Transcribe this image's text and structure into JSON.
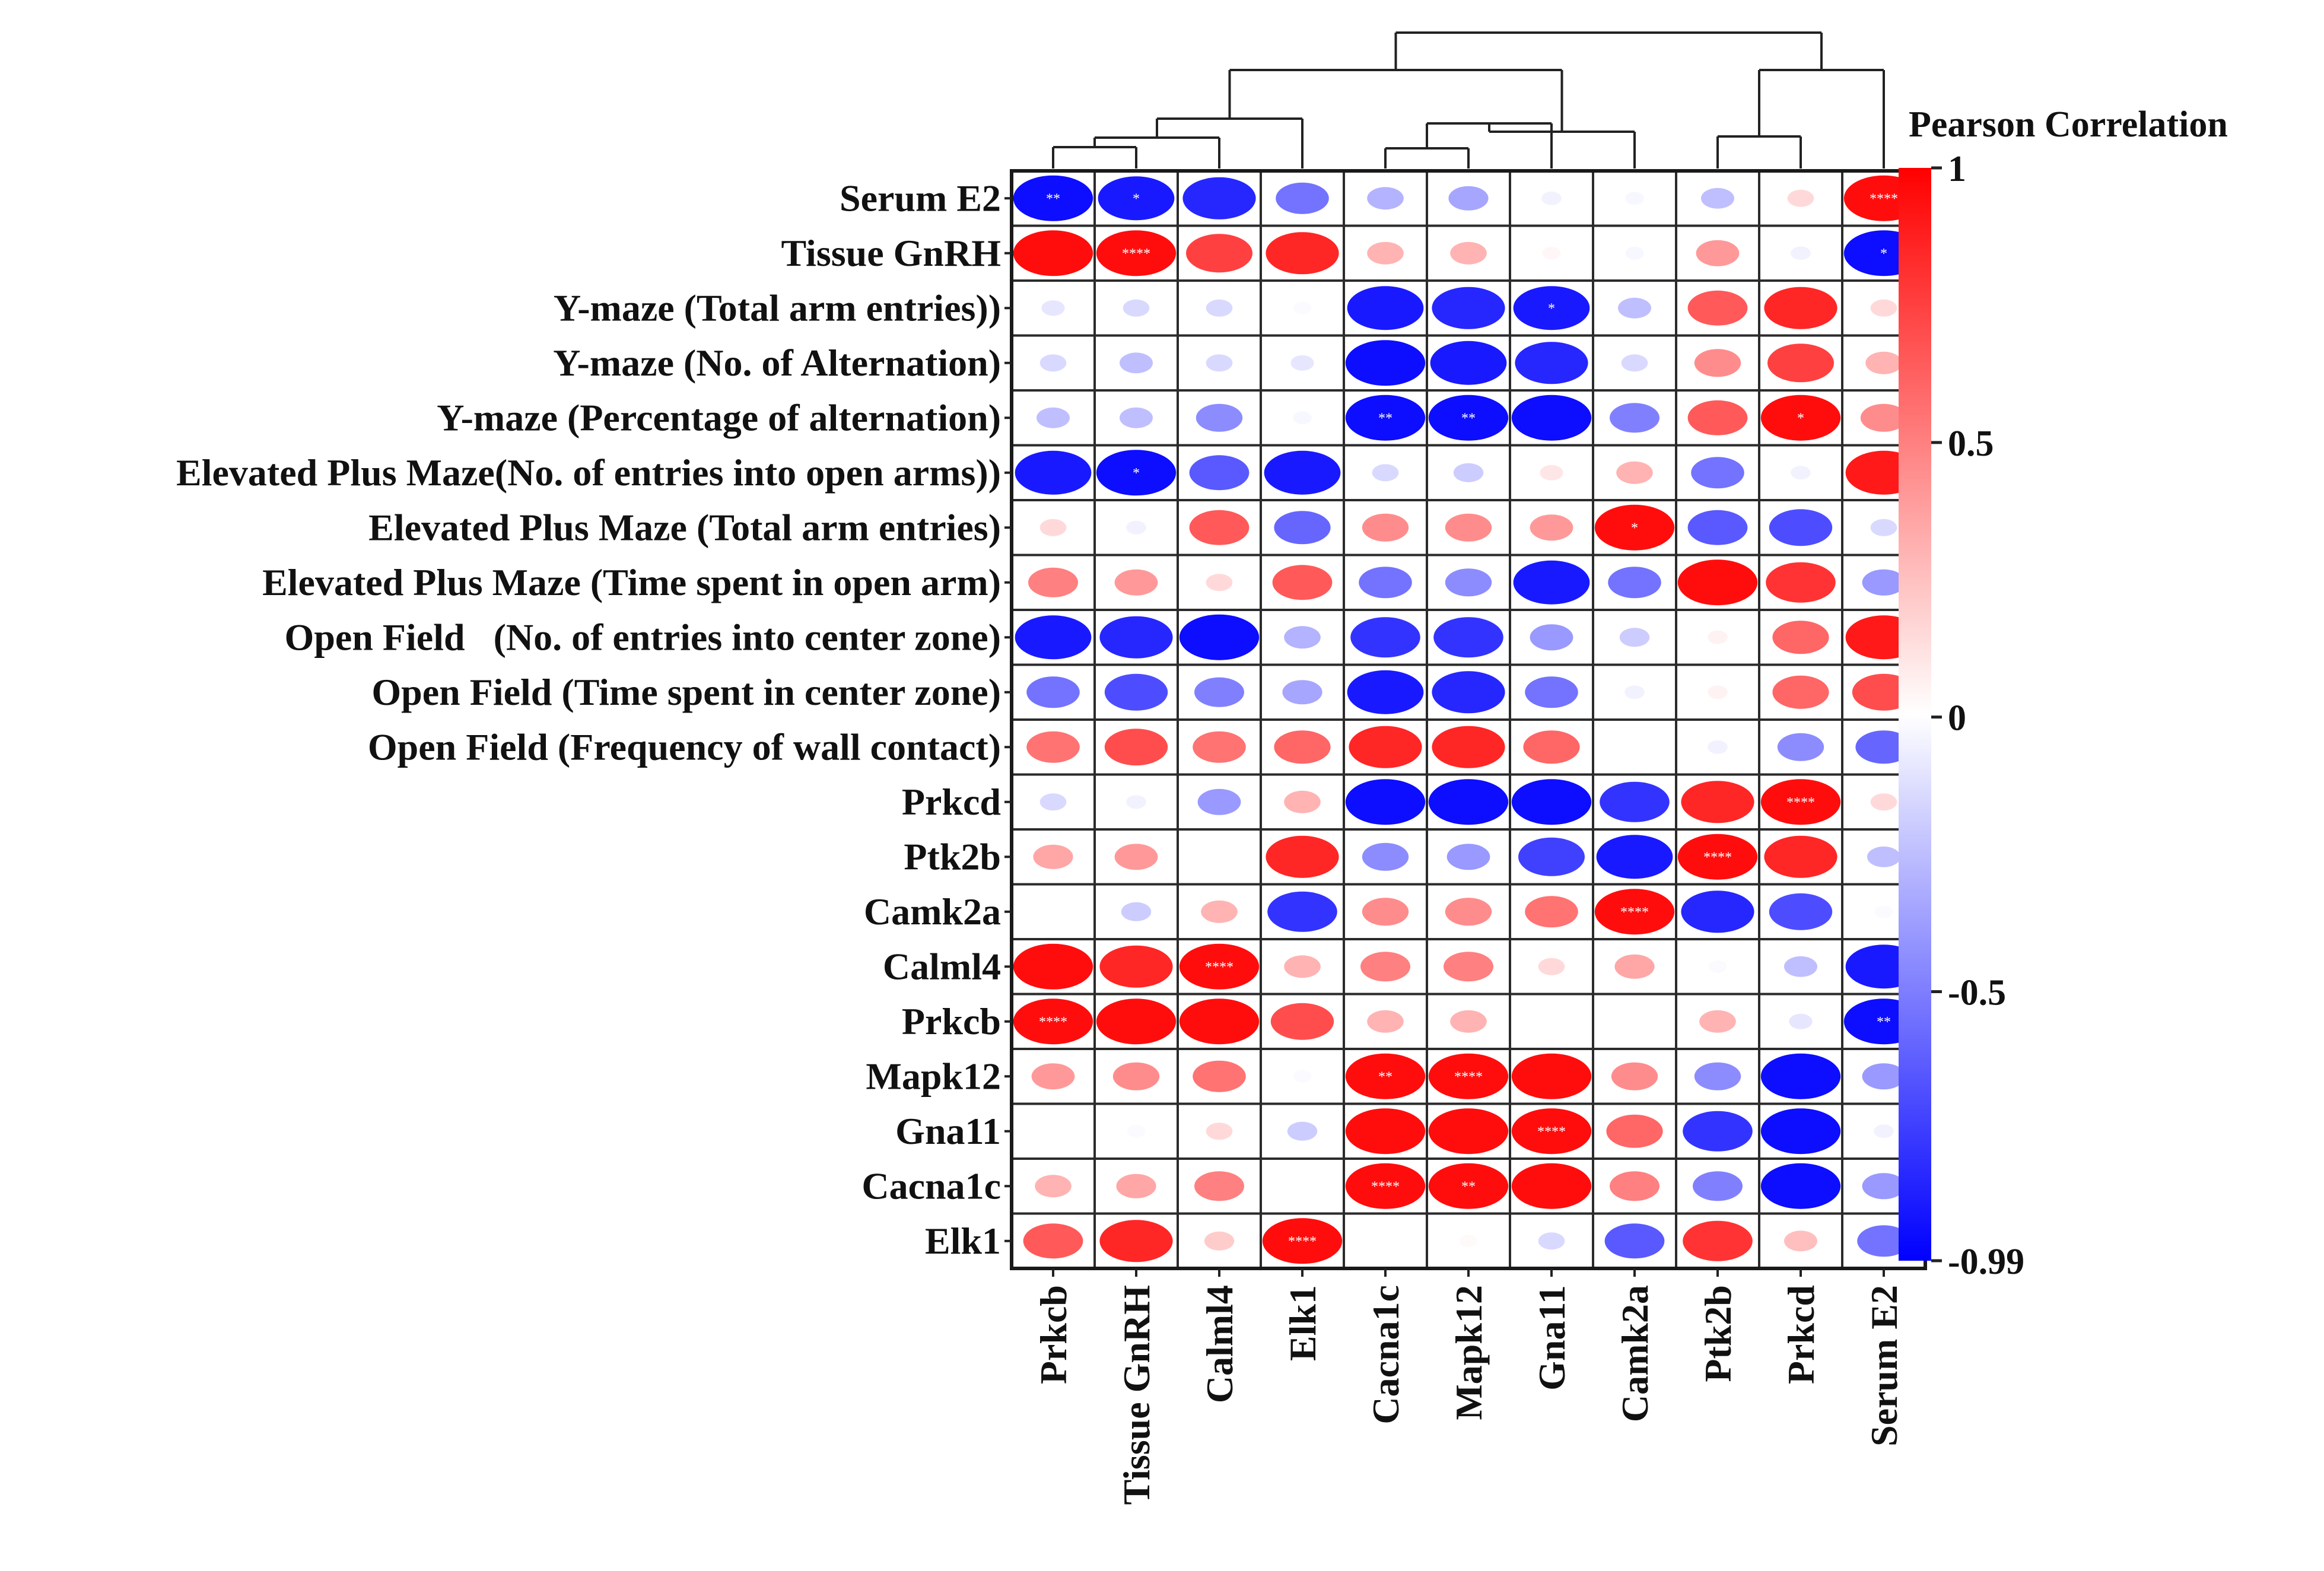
{
  "chart_data": {
    "type": "heatmap",
    "style": "circle-correlation-matrix",
    "title": "",
    "rows": [
      "Serum E2",
      "Tissue GnRH",
      "Y-maze (Total arm entries))",
      "Y-maze (No. of Alternation)",
      "Y-maze (Percentage of alternation)",
      "Elevated Plus Maze(No. of entries into open arms))",
      "Elevated Plus Maze (Total arm entries)",
      "Elevated Plus Maze (Time spent in open arm)",
      "Open Field   (No. of entries into center zone)",
      "Open Field (Time spent in center zone)",
      "Open Field (Frequency of wall contact)",
      "Prkcd",
      "Ptk2b",
      "Camk2a",
      "Calml4",
      "Prkcb",
      "Mapk12",
      "Gna11",
      "Cacna1c",
      "Elk1"
    ],
    "columns": [
      "Prkcb",
      "Tissue GnRH",
      "Calml4",
      "Elk1",
      "Cacna1c",
      "Mapk12",
      "Gna11",
      "Camk2a",
      "Ptk2b",
      "Prkcd",
      "Serum E2"
    ],
    "values": [
      [
        -0.95,
        -0.9,
        -0.85,
        -0.55,
        -0.3,
        -0.35,
        -0.05,
        -0.03,
        -0.25,
        0.15,
        0.95
      ],
      [
        0.95,
        0.95,
        0.75,
        0.85,
        0.3,
        0.3,
        0.03,
        -0.03,
        0.4,
        -0.05,
        -0.95
      ],
      [
        -0.1,
        -0.15,
        -0.15,
        -0.02,
        -0.9,
        -0.85,
        -0.9,
        -0.25,
        0.65,
        0.85,
        0.15
      ],
      [
        -0.15,
        -0.25,
        -0.15,
        -0.1,
        -0.95,
        -0.9,
        -0.85,
        -0.15,
        0.45,
        0.75,
        0.3
      ],
      [
        -0.25,
        -0.25,
        -0.45,
        -0.03,
        -0.95,
        -0.95,
        -0.95,
        -0.5,
        0.65,
        0.95,
        0.45
      ],
      [
        -0.9,
        -0.95,
        -0.65,
        -0.9,
        -0.15,
        -0.2,
        0.1,
        0.3,
        -0.55,
        -0.05,
        0.9
      ],
      [
        0.15,
        -0.05,
        0.65,
        -0.6,
        0.45,
        0.45,
        0.4,
        0.95,
        -0.65,
        -0.7,
        -0.15
      ],
      [
        0.5,
        0.4,
        0.15,
        0.65,
        -0.55,
        -0.45,
        -0.9,
        -0.55,
        0.95,
        0.8,
        -0.4
      ],
      [
        -0.9,
        -0.85,
        -0.95,
        -0.3,
        -0.8,
        -0.8,
        -0.4,
        -0.2,
        0.05,
        0.6,
        0.9
      ],
      [
        -0.55,
        -0.7,
        -0.5,
        -0.35,
        -0.9,
        -0.85,
        -0.55,
        -0.05,
        0.05,
        0.6,
        0.7
      ],
      [
        0.55,
        0.7,
        0.55,
        0.6,
        0.85,
        0.85,
        0.6,
        0.0,
        -0.05,
        -0.45,
        -0.6
      ],
      [
        -0.15,
        -0.05,
        -0.4,
        0.3,
        -0.95,
        -0.95,
        -0.95,
        -0.8,
        0.85,
        0.95,
        0.15
      ],
      [
        0.35,
        0.4,
        0.0,
        0.85,
        -0.45,
        -0.4,
        -0.75,
        -0.9,
        0.95,
        0.85,
        -0.25
      ],
      [
        0.0,
        -0.2,
        0.3,
        -0.8,
        0.45,
        0.45,
        0.55,
        0.95,
        -0.85,
        -0.7,
        -0.02
      ],
      [
        0.95,
        0.85,
        0.95,
        0.3,
        0.5,
        0.5,
        0.15,
        0.35,
        -0.02,
        -0.25,
        -0.9
      ],
      [
        0.95,
        0.95,
        0.95,
        0.7,
        0.3,
        0.3,
        0.0,
        0.0,
        0.3,
        -0.1,
        -0.95
      ],
      [
        0.4,
        0.45,
        0.55,
        -0.02,
        0.95,
        0.95,
        0.95,
        0.45,
        -0.45,
        -0.95,
        -0.4
      ],
      [
        0.0,
        -0.02,
        0.15,
        -0.2,
        0.95,
        0.95,
        0.95,
        0.6,
        -0.8,
        -0.95,
        -0.05
      ],
      [
        0.3,
        0.35,
        0.5,
        0.0,
        0.95,
        0.95,
        0.95,
        0.5,
        -0.5,
        -0.95,
        -0.4
      ],
      [
        0.65,
        0.85,
        0.2,
        0.95,
        0.0,
        0.02,
        -0.15,
        -0.65,
        0.8,
        0.25,
        -0.55
      ]
    ],
    "significance": [
      [
        "**",
        "*",
        "",
        "",
        "",
        "",
        "",
        "",
        "",
        "",
        "****"
      ],
      [
        "",
        "****",
        "",
        "",
        "",
        "",
        "",
        "",
        "",
        "",
        "*"
      ],
      [
        "",
        "",
        "",
        "",
        "",
        "",
        "*",
        "",
        "",
        "",
        ""
      ],
      [
        "",
        "",
        "",
        "",
        "",
        "",
        "",
        "",
        "",
        "",
        ""
      ],
      [
        "",
        "",
        "",
        "",
        "**",
        "**",
        "",
        "",
        "",
        "*",
        ""
      ],
      [
        "",
        "*",
        "",
        "",
        "",
        "",
        "",
        "",
        "",
        "",
        ""
      ],
      [
        "",
        "",
        "",
        "",
        "",
        "",
        "",
        "*",
        "",
        "",
        ""
      ],
      [
        "",
        "",
        "",
        "",
        "",
        "",
        "",
        "",
        "",
        "",
        ""
      ],
      [
        "",
        "",
        "",
        "",
        "",
        "",
        "",
        "",
        "",
        "",
        ""
      ],
      [
        "",
        "",
        "",
        "",
        "",
        "",
        "",
        "",
        "",
        "",
        ""
      ],
      [
        "",
        "",
        "",
        "",
        "",
        "",
        "",
        "",
        "",
        "",
        ""
      ],
      [
        "",
        "",
        "",
        "",
        "",
        "",
        "",
        "",
        "",
        "****",
        ""
      ],
      [
        "",
        "",
        "",
        "",
        "",
        "",
        "",
        "",
        "****",
        "",
        ""
      ],
      [
        "",
        "",
        "",
        "",
        "",
        "",
        "",
        "****",
        "",
        "",
        ""
      ],
      [
        "",
        "",
        "****",
        "",
        "",
        "",
        "",
        "",
        "",
        "",
        ""
      ],
      [
        "****",
        "",
        "",
        "",
        "",
        "",
        "",
        "",
        "",
        "",
        "**"
      ],
      [
        "",
        "",
        "",
        "",
        "**",
        "****",
        "",
        "",
        "",
        "",
        ""
      ],
      [
        "",
        "",
        "",
        "",
        "",
        "",
        "****",
        "",
        "",
        "",
        ""
      ],
      [
        "",
        "",
        "",
        "",
        "****",
        "**",
        "",
        "",
        "",
        "",
        ""
      ],
      [
        "",
        "",
        "",
        "****",
        "",
        "",
        "",
        "",
        "",
        "",
        ""
      ]
    ],
    "legend": {
      "title": "Pearson Correlation",
      "ticks": [
        {
          "label": "1",
          "value": 1
        },
        {
          "label": "0.5",
          "value": 0.5
        },
        {
          "label": "0",
          "value": 0
        },
        {
          "label": "-0.5",
          "value": -0.5
        },
        {
          "label": "-0.99",
          "value": -0.99
        }
      ],
      "range": [
        -0.99,
        1
      ],
      "colors": {
        "high": "#ff0000",
        "mid": "#ffffff",
        "low": "#0000ff"
      }
    },
    "dendrogram": "column clustering tree drawn above the matrix",
    "grid": true
  }
}
